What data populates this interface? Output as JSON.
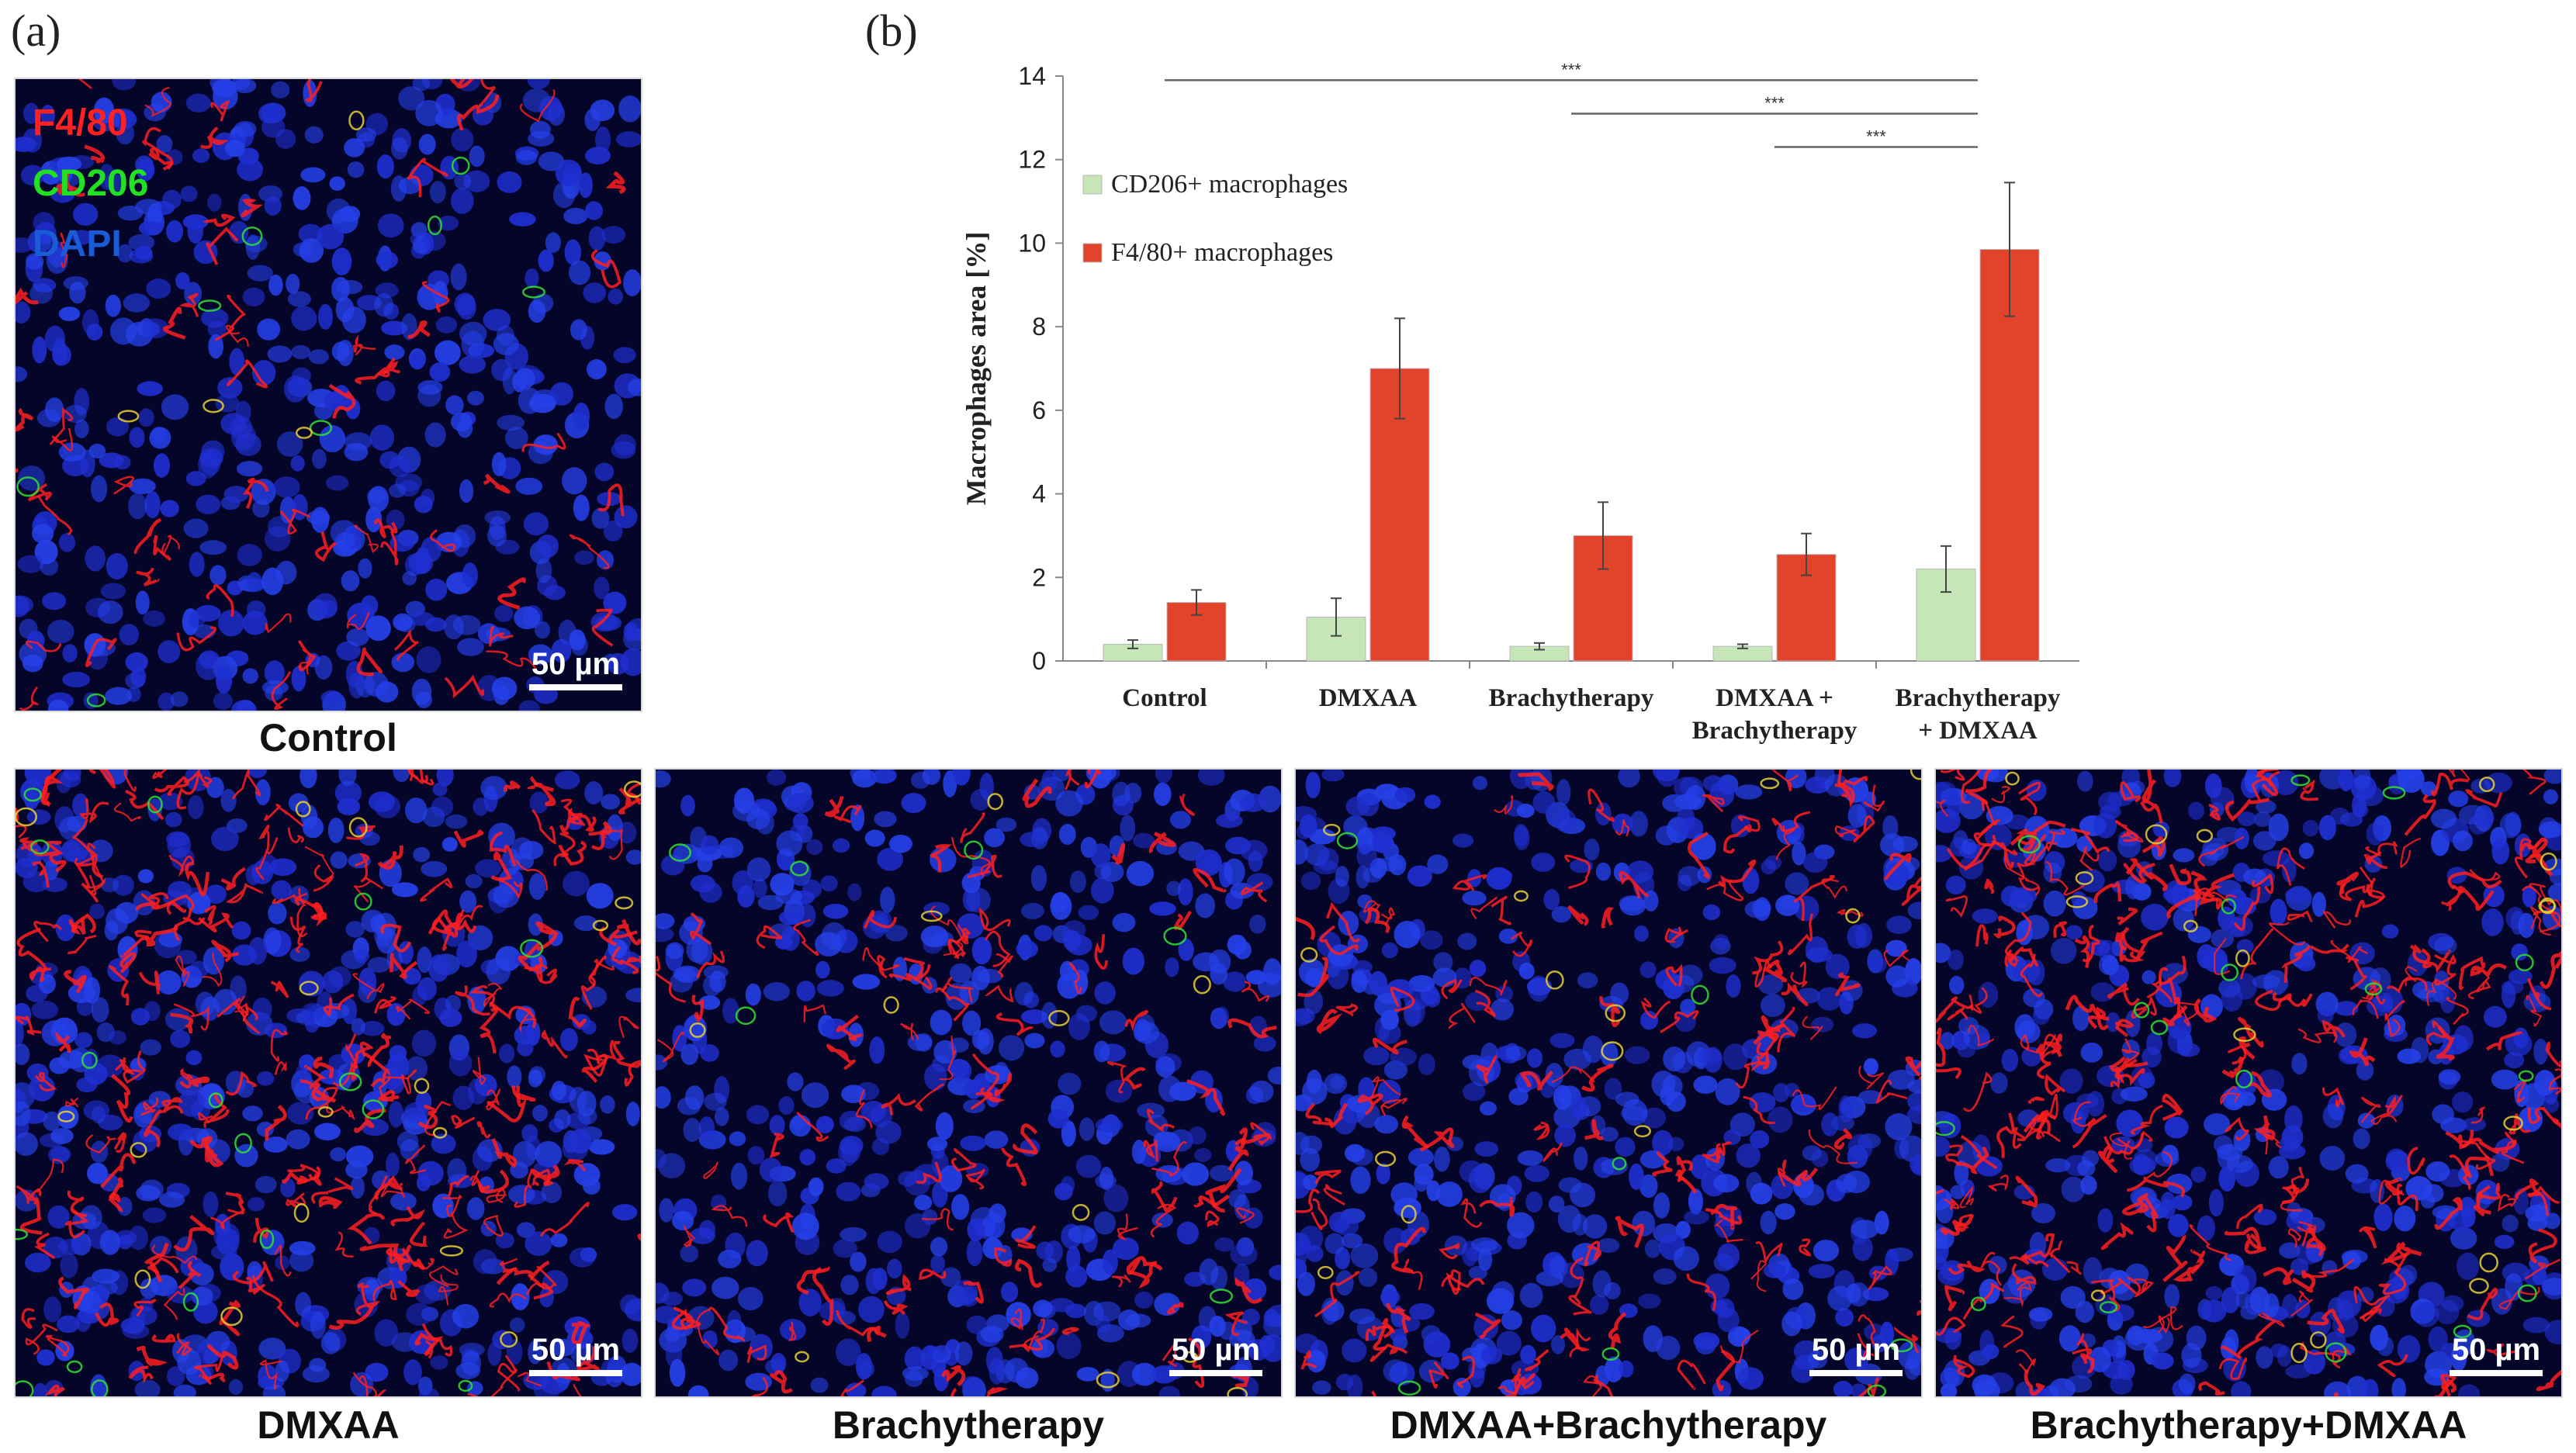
{
  "panel_labels": {
    "a": "(a)",
    "b": "(b)"
  },
  "stain_legend": [
    {
      "label": "F4/80",
      "color": "#ff2020"
    },
    {
      "label": "CD206",
      "color": "#22e022"
    },
    {
      "label": "DAPI",
      "color": "#1a5cd8"
    }
  ],
  "scale_bar_label": "50 µm",
  "micrographs": [
    {
      "caption": "Control",
      "density": 0.12
    },
    {
      "caption": "DMXAA",
      "density": 0.85
    },
    {
      "caption": "Brachytherapy",
      "density": 0.3
    },
    {
      "caption": "DMXAA+Brachytherapy",
      "density": 0.4
    },
    {
      "caption": "Brachytherapy+DMXAA",
      "density": 0.9
    }
  ],
  "chart_data": {
    "type": "bar",
    "categories": [
      "Control",
      "DMXAA",
      "Brachytherapy",
      "DMXAA +\nBrachytherapy",
      "Brachytherapy\n+ DMXAA"
    ],
    "series": [
      {
        "name": "CD206+ macrophages",
        "color": "#c6e6b8",
        "values": [
          0.4,
          1.05,
          0.35,
          0.35,
          2.2
        ],
        "errors": [
          0.1,
          0.45,
          0.08,
          0.05,
          0.55
        ]
      },
      {
        "name": "F4/80+ macrophages",
        "color": "#e2432a",
        "values": [
          1.4,
          7.0,
          3.0,
          2.55,
          9.85
        ],
        "errors": [
          0.3,
          1.2,
          0.8,
          0.5,
          1.6
        ]
      }
    ],
    "ylabel": "Macrophages area [%]",
    "xlabel": "",
    "ylim": [
      0,
      14
    ],
    "yticks": [
      0,
      2,
      4,
      6,
      8,
      10,
      12,
      14
    ],
    "legend_position": "upper-left",
    "significance": [
      {
        "from": 0,
        "to": 4,
        "y": 13.9,
        "label": "***"
      },
      {
        "from": 2,
        "to": 4,
        "y": 13.1,
        "label": "***"
      },
      {
        "from": 3,
        "to": 4,
        "y": 12.3,
        "label": "***"
      }
    ]
  }
}
